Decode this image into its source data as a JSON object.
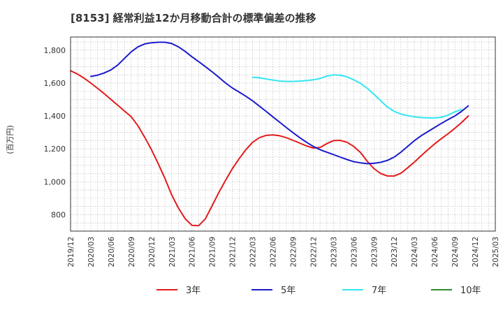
{
  "chart_data": {
    "type": "line",
    "title": "[8153]  経常利益12か月移動合計の標準偏差の推移",
    "ylabel": "(百万円)",
    "xlabel": "",
    "ylim": [
      700,
      1880
    ],
    "y_ticks": [
      800,
      1000,
      1200,
      1400,
      1600,
      1800
    ],
    "y_tick_labels": [
      "800",
      "1,000",
      "1,200",
      "1,400",
      "1,600",
      "1,800"
    ],
    "x_ticks": [
      "2019/12",
      "2020/03",
      "2020/06",
      "2020/09",
      "2020/12",
      "2021/03",
      "2021/06",
      "2021/09",
      "2021/12",
      "2022/03",
      "2022/06",
      "2022/09",
      "2022/12",
      "2023/03",
      "2023/06",
      "2023/09",
      "2023/12",
      "2024/03",
      "2024/06",
      "2024/09",
      "2024/12",
      "2025/03"
    ],
    "grid": true,
    "legend_position": "bottom",
    "series": [
      {
        "name": "3年",
        "color": "#e31a1c",
        "points": [
          [
            "2019/12",
            1675
          ],
          [
            "2020/01",
            1655
          ],
          [
            "2020/02",
            1630
          ],
          [
            "2020/03",
            1600
          ],
          [
            "2020/04",
            1568
          ],
          [
            "2020/05",
            1535
          ],
          [
            "2020/06",
            1500
          ],
          [
            "2020/07",
            1465
          ],
          [
            "2020/08",
            1430
          ],
          [
            "2020/09",
            1395
          ],
          [
            "2020/10",
            1340
          ],
          [
            "2020/11",
            1270
          ],
          [
            "2020/12",
            1195
          ],
          [
            "2021/01",
            1110
          ],
          [
            "2021/02",
            1020
          ],
          [
            "2021/03",
            920
          ],
          [
            "2021/04",
            840
          ],
          [
            "2021/05",
            775
          ],
          [
            "2021/06",
            735
          ],
          [
            "2021/07",
            733
          ],
          [
            "2021/08",
            775
          ],
          [
            "2021/09",
            855
          ],
          [
            "2021/10",
            935
          ],
          [
            "2021/11",
            1010
          ],
          [
            "2021/12",
            1080
          ],
          [
            "2022/01",
            1140
          ],
          [
            "2022/02",
            1195
          ],
          [
            "2022/03",
            1240
          ],
          [
            "2022/04",
            1268
          ],
          [
            "2022/05",
            1282
          ],
          [
            "2022/06",
            1285
          ],
          [
            "2022/07",
            1280
          ],
          [
            "2022/08",
            1268
          ],
          [
            "2022/09",
            1252
          ],
          [
            "2022/10",
            1235
          ],
          [
            "2022/11",
            1218
          ],
          [
            "2022/12",
            1205
          ],
          [
            "2023/01",
            1208
          ],
          [
            "2023/02",
            1232
          ],
          [
            "2023/03",
            1250
          ],
          [
            "2023/04",
            1252
          ],
          [
            "2023/05",
            1240
          ],
          [
            "2023/06",
            1215
          ],
          [
            "2023/07",
            1178
          ],
          [
            "2023/08",
            1125
          ],
          [
            "2023/09",
            1080
          ],
          [
            "2023/10",
            1050
          ],
          [
            "2023/11",
            1035
          ],
          [
            "2023/12",
            1035
          ],
          [
            "2024/01",
            1052
          ],
          [
            "2024/02",
            1085
          ],
          [
            "2024/03",
            1120
          ],
          [
            "2024/04",
            1158
          ],
          [
            "2024/05",
            1195
          ],
          [
            "2024/06",
            1230
          ],
          [
            "2024/07",
            1262
          ],
          [
            "2024/08",
            1292
          ],
          [
            "2024/09",
            1325
          ],
          [
            "2024/10",
            1360
          ],
          [
            "2024/11",
            1400
          ]
        ]
      },
      {
        "name": "5年",
        "color": "#1a1acc",
        "points": [
          [
            "2020/03",
            1640
          ],
          [
            "2020/04",
            1648
          ],
          [
            "2020/05",
            1662
          ],
          [
            "2020/06",
            1680
          ],
          [
            "2020/07",
            1710
          ],
          [
            "2020/08",
            1750
          ],
          [
            "2020/09",
            1790
          ],
          [
            "2020/10",
            1820
          ],
          [
            "2020/11",
            1838
          ],
          [
            "2020/12",
            1845
          ],
          [
            "2021/01",
            1848
          ],
          [
            "2021/02",
            1848
          ],
          [
            "2021/03",
            1840
          ],
          [
            "2021/04",
            1820
          ],
          [
            "2021/05",
            1792
          ],
          [
            "2021/06",
            1760
          ],
          [
            "2021/07",
            1730
          ],
          [
            "2021/08",
            1700
          ],
          [
            "2021/09",
            1668
          ],
          [
            "2021/10",
            1635
          ],
          [
            "2021/11",
            1600
          ],
          [
            "2021/12",
            1570
          ],
          [
            "2022/01",
            1545
          ],
          [
            "2022/02",
            1520
          ],
          [
            "2022/03",
            1492
          ],
          [
            "2022/04",
            1460
          ],
          [
            "2022/05",
            1428
          ],
          [
            "2022/06",
            1395
          ],
          [
            "2022/07",
            1362
          ],
          [
            "2022/08",
            1330
          ],
          [
            "2022/09",
            1298
          ],
          [
            "2022/10",
            1268
          ],
          [
            "2022/11",
            1240
          ],
          [
            "2022/12",
            1215
          ],
          [
            "2023/01",
            1195
          ],
          [
            "2023/02",
            1180
          ],
          [
            "2023/03",
            1165
          ],
          [
            "2023/04",
            1150
          ],
          [
            "2023/05",
            1135
          ],
          [
            "2023/06",
            1122
          ],
          [
            "2023/07",
            1115
          ],
          [
            "2023/08",
            1110
          ],
          [
            "2023/09",
            1112
          ],
          [
            "2023/10",
            1118
          ],
          [
            "2023/11",
            1130
          ],
          [
            "2023/12",
            1150
          ],
          [
            "2024/01",
            1180
          ],
          [
            "2024/02",
            1215
          ],
          [
            "2024/03",
            1250
          ],
          [
            "2024/04",
            1280
          ],
          [
            "2024/05",
            1305
          ],
          [
            "2024/06",
            1330
          ],
          [
            "2024/07",
            1355
          ],
          [
            "2024/08",
            1378
          ],
          [
            "2024/09",
            1400
          ],
          [
            "2024/10",
            1428
          ],
          [
            "2024/11",
            1462
          ]
        ]
      },
      {
        "name": "7年",
        "color": "#33e5f2",
        "points": [
          [
            "2022/03",
            1635
          ],
          [
            "2022/04",
            1632
          ],
          [
            "2022/05",
            1625
          ],
          [
            "2022/06",
            1618
          ],
          [
            "2022/07",
            1612
          ],
          [
            "2022/08",
            1610
          ],
          [
            "2022/09",
            1610
          ],
          [
            "2022/10",
            1612
          ],
          [
            "2022/11",
            1615
          ],
          [
            "2022/12",
            1620
          ],
          [
            "2023/01",
            1628
          ],
          [
            "2023/02",
            1642
          ],
          [
            "2023/03",
            1650
          ],
          [
            "2023/04",
            1648
          ],
          [
            "2023/05",
            1638
          ],
          [
            "2023/06",
            1620
          ],
          [
            "2023/07",
            1598
          ],
          [
            "2023/08",
            1568
          ],
          [
            "2023/09",
            1532
          ],
          [
            "2023/10",
            1492
          ],
          [
            "2023/11",
            1455
          ],
          [
            "2023/12",
            1428
          ],
          [
            "2024/01",
            1412
          ],
          [
            "2024/02",
            1402
          ],
          [
            "2024/03",
            1395
          ],
          [
            "2024/04",
            1390
          ],
          [
            "2024/05",
            1388
          ],
          [
            "2024/06",
            1388
          ],
          [
            "2024/07",
            1392
          ],
          [
            "2024/08",
            1405
          ],
          [
            "2024/09",
            1425
          ],
          [
            "2024/10",
            1440
          ]
        ]
      },
      {
        "name": "10年",
        "color": "#2e8b2e",
        "points": []
      }
    ]
  }
}
